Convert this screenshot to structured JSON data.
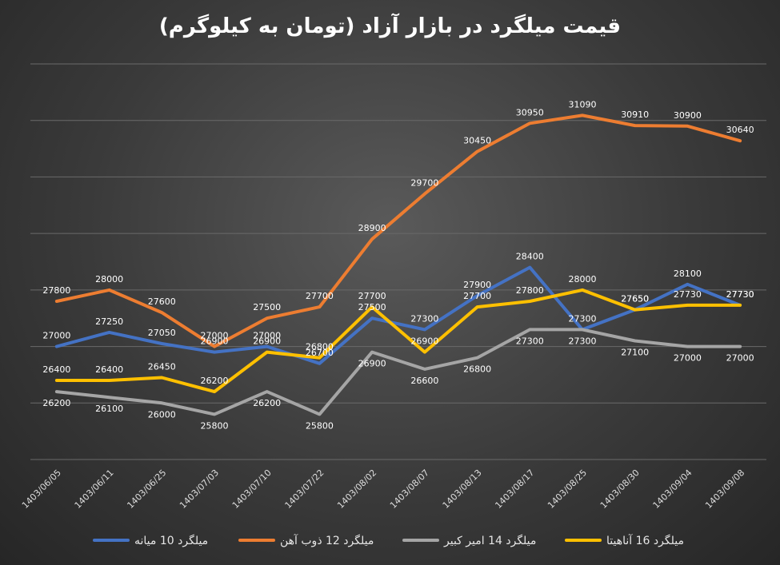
{
  "chart_data": {
    "type": "line",
    "title": "قیمت میلگرد در بازار آزاد (تومان به کیلوگرم)",
    "xlabel": "",
    "ylabel": "",
    "ylim": [
      25000,
      32000
    ],
    "grid": true,
    "legend_position": "bottom",
    "categories": [
      "1403/06/05",
      "1403/06/11",
      "1403/06/25",
      "1403/07/03",
      "1403/07/10",
      "1403/07/22",
      "1403/08/02",
      "1403/08/07",
      "1403/08/13",
      "1403/08/17",
      "1403/08/25",
      "1403/08/30",
      "1403/09/04",
      "1403/09/08"
    ],
    "series": [
      {
        "name": "میلگرد 10 میانه",
        "color": "#4472C4",
        "values": [
          27000,
          27250,
          27050,
          26900,
          27000,
          26700,
          27500,
          27300,
          27900,
          28400,
          27300,
          27650,
          28100,
          27730
        ]
      },
      {
        "name": "میلگرد  12 ذوب آهن",
        "color": "#ED7D31",
        "values": [
          27800,
          28000,
          27600,
          27000,
          27500,
          27700,
          28900,
          29700,
          30450,
          30950,
          31090,
          30910,
          30900,
          30640
        ]
      },
      {
        "name": "میلگرد 14 امیر کبیر",
        "color": "#A5A5A5",
        "values": [
          26200,
          26100,
          26000,
          25800,
          26200,
          25800,
          26900,
          26600,
          26800,
          27300,
          27300,
          27100,
          27000,
          27000
        ]
      },
      {
        "name": "میلگرد 16 آناهیتا",
        "color": "#FFC000",
        "values": [
          26400,
          26400,
          26450,
          26200,
          26900,
          26800,
          27700,
          26900,
          27700,
          27800,
          28000,
          27650,
          27730,
          27730
        ]
      }
    ]
  }
}
